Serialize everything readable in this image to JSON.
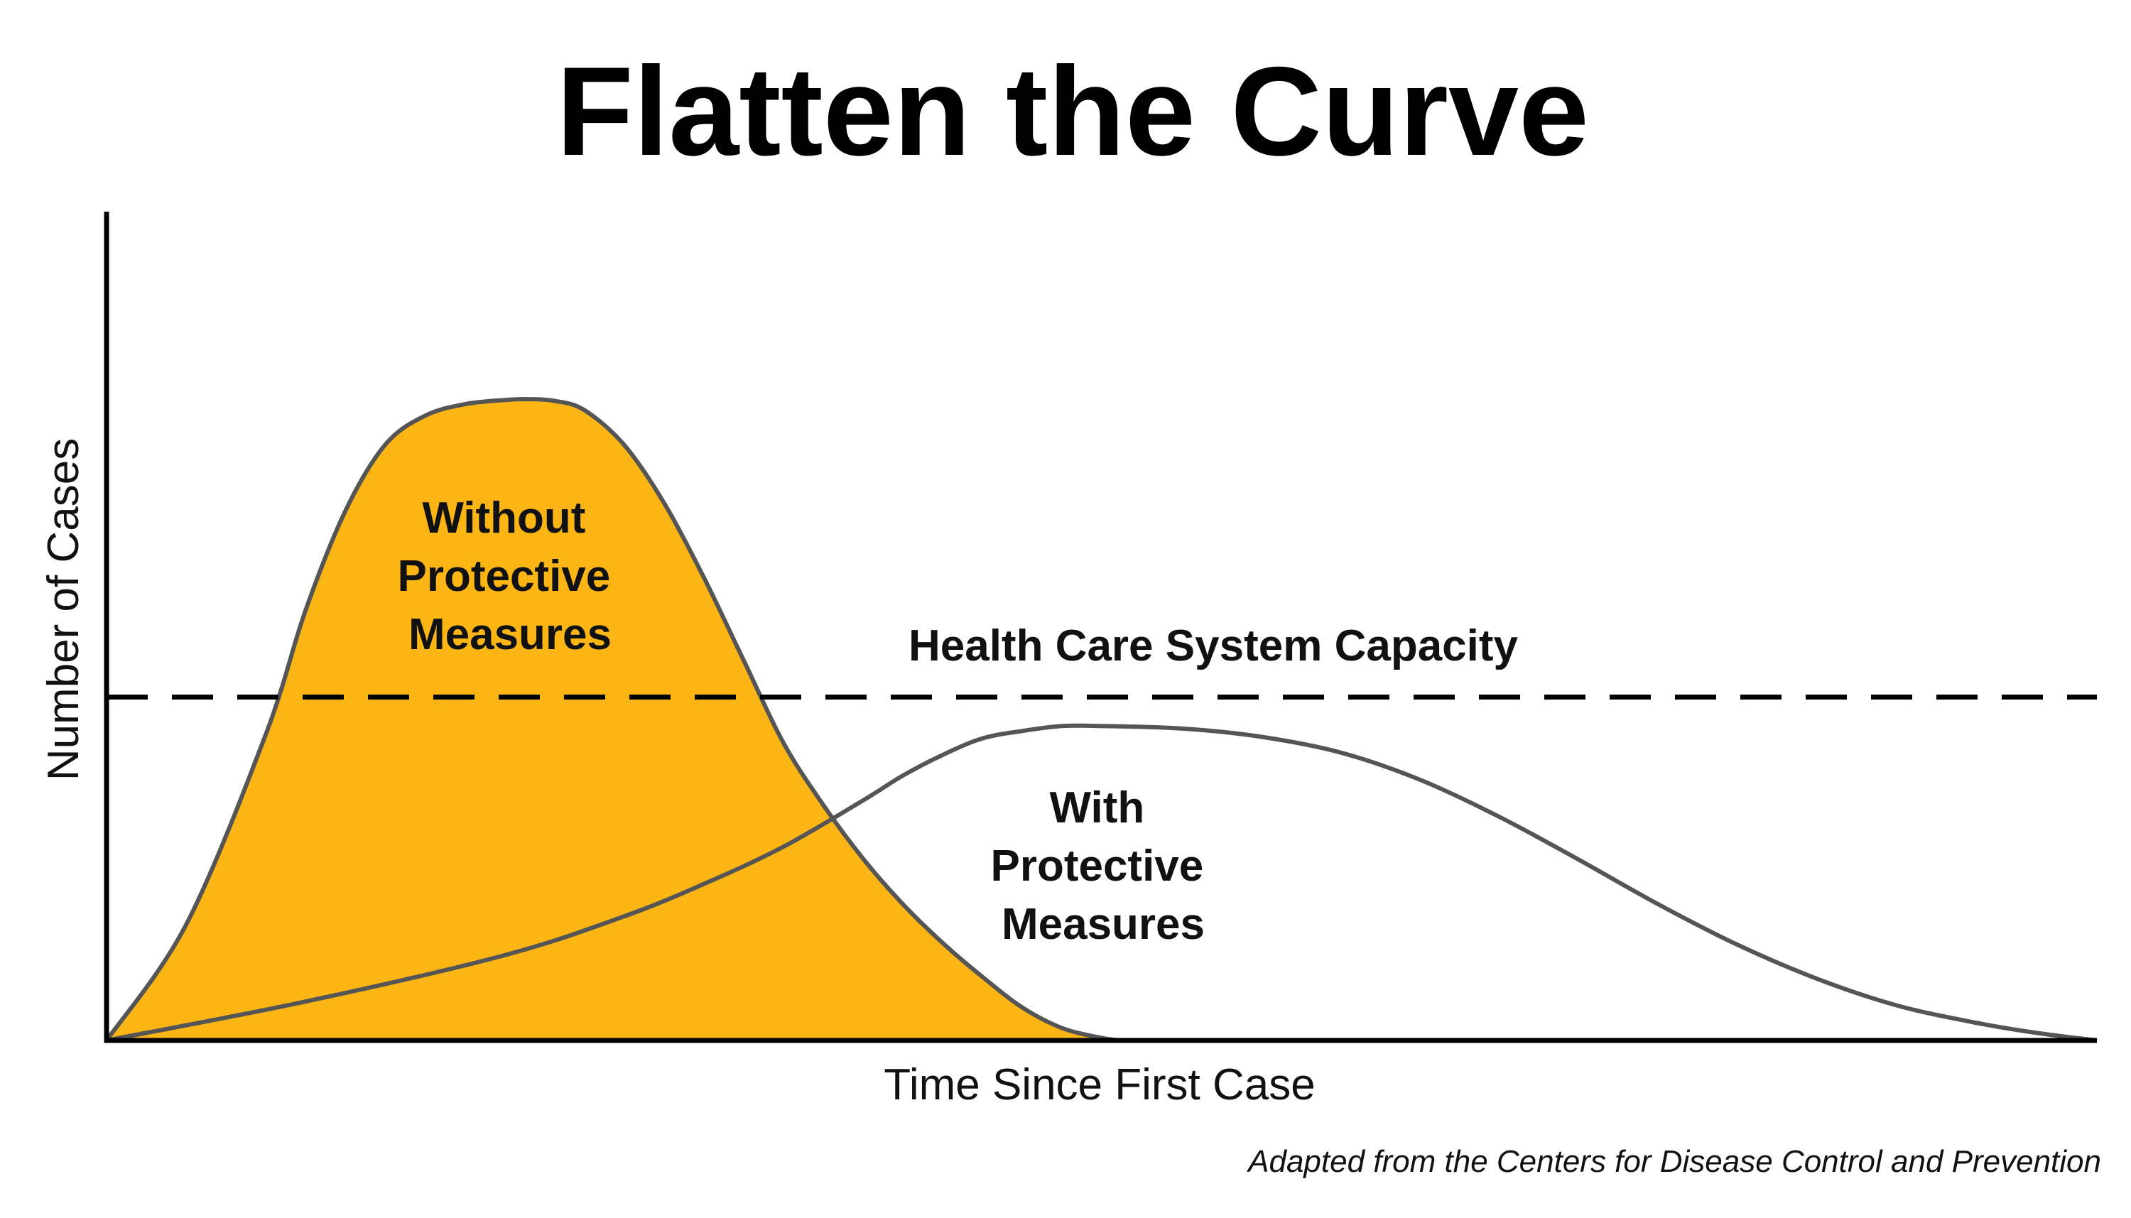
{
  "chart_data": {
    "type": "area",
    "title": "Flatten the Curve",
    "xlabel": "Time Since First Case",
    "ylabel": "Number of Cases",
    "source": "Adapted from the Centers for Disease Control and Prevention",
    "xlim": [
      0,
      100
    ],
    "ylim": [
      0,
      100
    ],
    "grid": false,
    "ticks": false,
    "capacity": {
      "label": "Health Care System Capacity",
      "y": 41.5
    },
    "series": [
      {
        "label_lines": [
          "Without",
          "Protective",
          "Measures"
        ],
        "fill": "#FBB615",
        "stroke": "#555555",
        "points": [
          [
            0,
            0
          ],
          [
            4,
            14
          ],
          [
            8,
            37
          ],
          [
            10,
            52
          ],
          [
            12,
            64
          ],
          [
            14,
            72
          ],
          [
            16,
            75.5
          ],
          [
            18,
            76.9
          ],
          [
            20,
            77.4
          ],
          [
            21.2,
            77.5
          ],
          [
            22.5,
            77.3
          ],
          [
            24,
            76.2
          ],
          [
            26,
            72
          ],
          [
            28,
            65
          ],
          [
            30,
            56
          ],
          [
            32,
            46
          ],
          [
            34,
            36
          ],
          [
            36,
            28.5
          ],
          [
            38,
            22
          ],
          [
            40,
            16.5
          ],
          [
            42,
            11.8
          ],
          [
            44,
            7.7
          ],
          [
            46,
            4
          ],
          [
            48,
            1.5
          ],
          [
            50,
            0.3
          ],
          [
            51,
            0
          ]
        ]
      },
      {
        "label_lines": [
          "With",
          "Protective",
          "Measures"
        ],
        "fill": "none",
        "stroke": "#555555",
        "points": [
          [
            0,
            0
          ],
          [
            10,
            4.7
          ],
          [
            20,
            10.3
          ],
          [
            26,
            15
          ],
          [
            30,
            18.9
          ],
          [
            34,
            23.4
          ],
          [
            38,
            29
          ],
          [
            40,
            32
          ],
          [
            42,
            34.5
          ],
          [
            44,
            36.5
          ],
          [
            46,
            37.4
          ],
          [
            48,
            38
          ],
          [
            50,
            38
          ],
          [
            54,
            37.7
          ],
          [
            58,
            36.7
          ],
          [
            62,
            34.8
          ],
          [
            66,
            31.5
          ],
          [
            70,
            27
          ],
          [
            74,
            21.8
          ],
          [
            78,
            16.4
          ],
          [
            82,
            11.5
          ],
          [
            86,
            7.4
          ],
          [
            90,
            4.2
          ],
          [
            94,
            2.1
          ],
          [
            97,
            0.9
          ],
          [
            100,
            0
          ]
        ]
      }
    ]
  }
}
